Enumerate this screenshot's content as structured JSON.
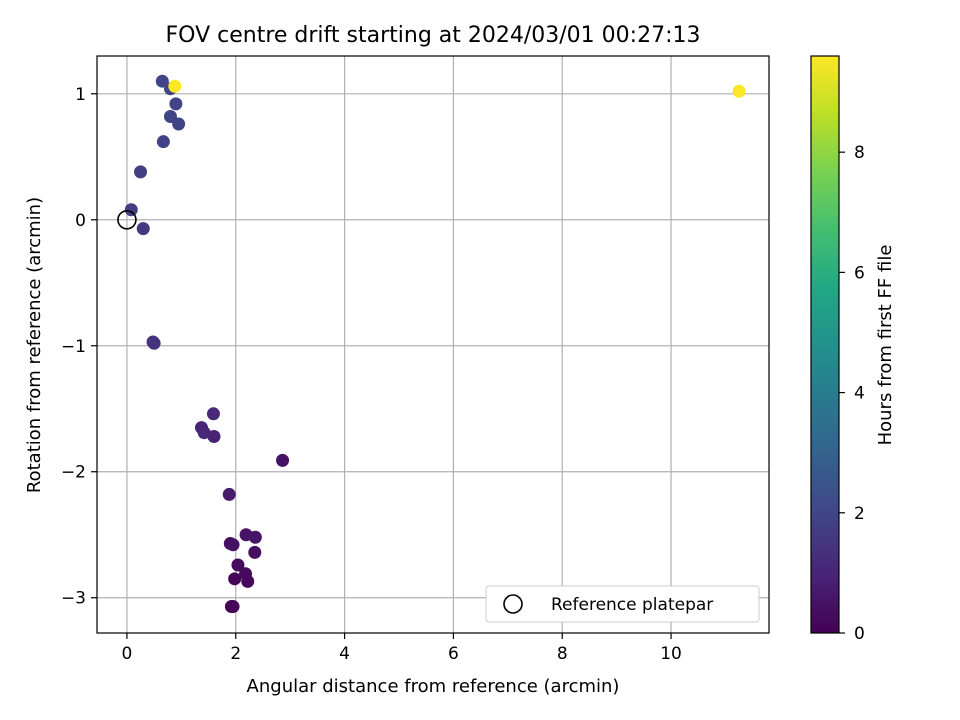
{
  "chart_data": {
    "type": "scatter",
    "title": "FOV centre drift starting at 2024/03/01 00:27:13",
    "xlabel": "Angular distance from reference (arcmin)",
    "ylabel": "Rotation from reference (arcmin)",
    "xlim": [
      -0.55,
      11.8
    ],
    "ylim": [
      -3.28,
      1.3
    ],
    "xticks": [
      "0",
      "2",
      "4",
      "6",
      "8",
      "10"
    ],
    "yticks": [
      "1",
      "0",
      "−1",
      "−2",
      "−3"
    ],
    "grid": true,
    "legend": {
      "label": "Reference platepar",
      "placement": "lower-right"
    },
    "reference_point": {
      "x": 0,
      "y": 0
    },
    "colorbar": {
      "label": "Hours from first FF file",
      "range": [
        0,
        9.6
      ],
      "ticks": [
        "0",
        "2",
        "4",
        "6",
        "8"
      ],
      "colormap": "viridis"
    },
    "points": [
      {
        "x": 1.92,
        "y": -3.07,
        "h": 0.05
      },
      {
        "x": 1.95,
        "y": -3.07,
        "h": 0.1
      },
      {
        "x": 1.98,
        "y": -2.85,
        "h": 0.15
      },
      {
        "x": 2.22,
        "y": -2.87,
        "h": 0.2
      },
      {
        "x": 2.18,
        "y": -2.81,
        "h": 0.25
      },
      {
        "x": 2.04,
        "y": -2.74,
        "h": 0.3
      },
      {
        "x": 2.35,
        "y": -2.64,
        "h": 0.35
      },
      {
        "x": 1.9,
        "y": -2.57,
        "h": 0.4
      },
      {
        "x": 1.95,
        "y": -2.58,
        "h": 0.45
      },
      {
        "x": 2.19,
        "y": -2.5,
        "h": 0.5
      },
      {
        "x": 2.36,
        "y": -2.52,
        "h": 0.55
      },
      {
        "x": 2.86,
        "y": -1.91,
        "h": 0.5
      },
      {
        "x": 1.88,
        "y": -2.18,
        "h": 0.7
      },
      {
        "x": 1.6,
        "y": -1.72,
        "h": 0.9
      },
      {
        "x": 1.37,
        "y": -1.65,
        "h": 1.0
      },
      {
        "x": 1.42,
        "y": -1.69,
        "h": 1.05
      },
      {
        "x": 1.59,
        "y": -1.54,
        "h": 1.1
      },
      {
        "x": 0.48,
        "y": -0.97,
        "h": 1.35
      },
      {
        "x": 0.5,
        "y": -0.98,
        "h": 1.4
      },
      {
        "x": 0.3,
        "y": -0.07,
        "h": 1.6
      },
      {
        "x": 0.08,
        "y": 0.08,
        "h": 1.7
      },
      {
        "x": 0.25,
        "y": 0.38,
        "h": 1.8
      },
      {
        "x": 0.67,
        "y": 0.62,
        "h": 1.85
      },
      {
        "x": 0.8,
        "y": 0.82,
        "h": 1.9
      },
      {
        "x": 0.95,
        "y": 0.76,
        "h": 1.9
      },
      {
        "x": 0.9,
        "y": 0.92,
        "h": 1.95
      },
      {
        "x": 0.65,
        "y": 1.1,
        "h": 2.0
      },
      {
        "x": 0.8,
        "y": 1.04,
        "h": 2.0
      },
      {
        "x": 0.88,
        "y": 1.06,
        "h": 9.6
      },
      {
        "x": 11.25,
        "y": 1.02,
        "h": 9.55
      }
    ]
  }
}
